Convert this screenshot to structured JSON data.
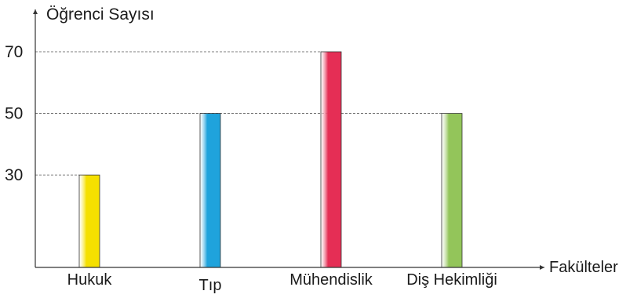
{
  "chart_data": {
    "type": "bar",
    "title": "",
    "ylabel": "Öğrenci Sayısı",
    "xlabel": "Fakülteler",
    "categories": [
      "Hukuk",
      "Tıp",
      "Mühendislik",
      "Diş Hekimliği"
    ],
    "values": [
      30,
      50,
      70,
      50
    ],
    "yticks": [
      30,
      50,
      70
    ],
    "ylim": [
      0,
      70
    ],
    "grid": "dashed reference lines at tick values",
    "colors": [
      "#f5e000",
      "#1fa3dc",
      "#e52e55",
      "#93c55a"
    ]
  }
}
